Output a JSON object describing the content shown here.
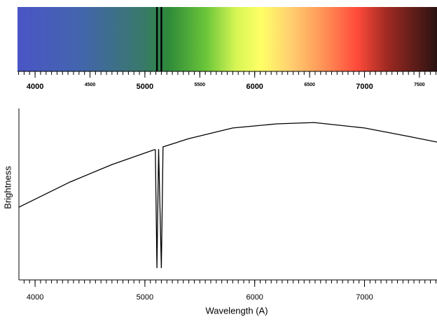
{
  "chart_data": [
    {
      "type": "spectrum",
      "xlim": [
        3840,
        7660
      ],
      "xticks": [
        4000,
        4500,
        5000,
        5500,
        6000,
        6500,
        7000,
        7500
      ],
      "lines": [
        5110,
        5150
      ],
      "minor_tick_step": 50
    },
    {
      "type": "line",
      "xlabel": "Wavelength (A)",
      "ylabel": "Brightness",
      "color": "#000000",
      "xlim": [
        3840,
        7660
      ],
      "ylim": [
        0,
        100
      ],
      "xticks": [
        4000,
        5000,
        6000,
        7000
      ],
      "minor_tick_step": 50,
      "x": [
        3853,
        4318,
        4701,
        5084,
        5095,
        5110,
        5125,
        5150,
        5165,
        5400,
        5800,
        6200,
        6540,
        7000,
        7400,
        7660
      ],
      "values": [
        42.4,
        57.1,
        67.3,
        75.9,
        75.9,
        6.9,
        76.3,
        6.9,
        77.6,
        82.4,
        88.6,
        91.0,
        91.8,
        88.6,
        83.7,
        80.4
      ]
    }
  ]
}
